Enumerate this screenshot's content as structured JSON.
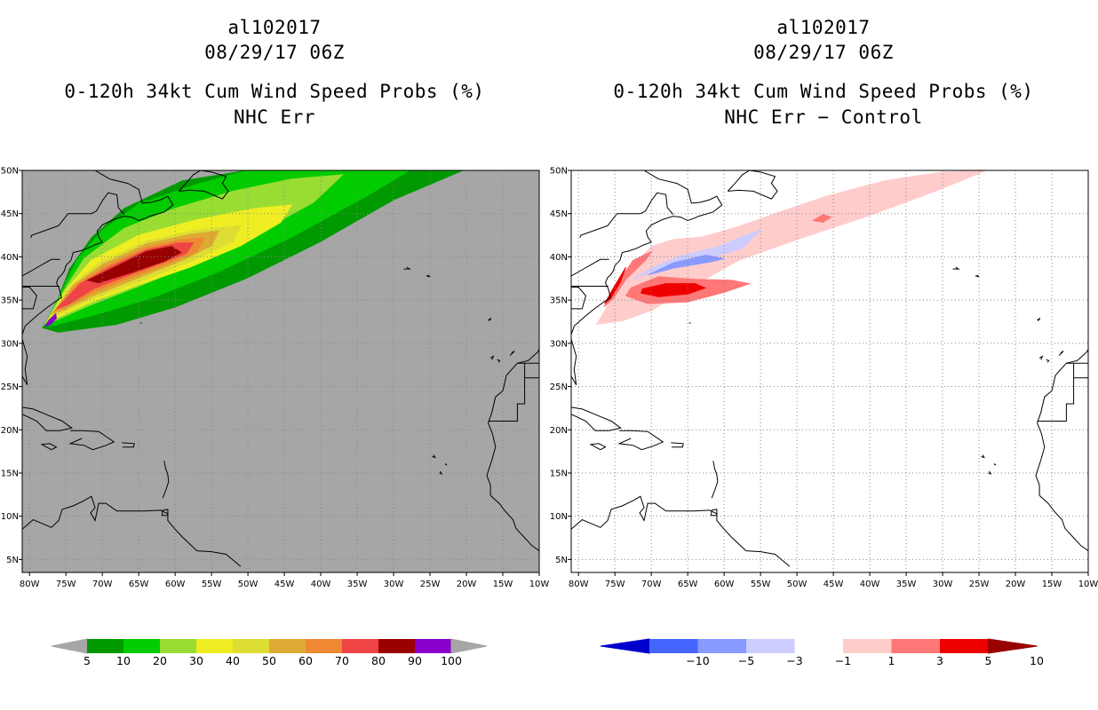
{
  "chart_data": [
    {
      "type": "heatmap",
      "storm_id": "al102017",
      "datetime": "08/29/17 06Z",
      "title": "0-120h 34kt Cum Wind Speed Probs (%)",
      "subtitle": "NHC Err",
      "xlim": [
        -81,
        -10
      ],
      "ylim": [
        3.5,
        50
      ],
      "xticks": [
        "80W",
        "75W",
        "70W",
        "65W",
        "60W",
        "55W",
        "50W",
        "45W",
        "40W",
        "35W",
        "30W",
        "25W",
        "20W",
        "15W",
        "10W"
      ],
      "yticks": [
        "5N",
        "10N",
        "15N",
        "20N",
        "25N",
        "30N",
        "35N",
        "40N",
        "45N",
        "50N"
      ],
      "background": "#a6a6a6",
      "colorbar": {
        "labels": [
          "5",
          "10",
          "20",
          "30",
          "40",
          "50",
          "60",
          "70",
          "80",
          "90",
          "100"
        ],
        "colors": [
          "#009900",
          "#00cc00",
          "#99dd33",
          "#eeee22",
          "#dddd33",
          "#ddaa33",
          "#ee8833",
          "#ee4444",
          "#990000",
          "#8800cc"
        ]
      },
      "field": [
        {
          "level": "5",
          "color": "#009900",
          "points": [
            [
              -78.2,
              31.8
            ],
            [
              -76.5,
              34.2
            ],
            [
              -74.5,
              38.6
            ],
            [
              -71.5,
              42.2
            ],
            [
              -67,
              45.6
            ],
            [
              -59,
              48.8
            ],
            [
              -50,
              50
            ],
            [
              -20.5,
              50
            ],
            [
              -30,
              46.6
            ],
            [
              -40,
              41.8
            ],
            [
              -50,
              37.6
            ],
            [
              -60,
              34.2
            ],
            [
              -68,
              32.2
            ],
            [
              -76,
              31.3
            ]
          ]
        },
        {
          "level": "10",
          "color": "#00cc00",
          "points": [
            [
              -78,
              32
            ],
            [
              -76,
              35.3
            ],
            [
              -73.5,
              39.6
            ],
            [
              -70,
              43.1
            ],
            [
              -65,
              46.1
            ],
            [
              -57,
              48.4
            ],
            [
              -50,
              50
            ],
            [
              -27.8,
              50
            ],
            [
              -34,
              46.9
            ],
            [
              -44,
              42.3
            ],
            [
              -54,
              38.3
            ],
            [
              -63,
              35.3
            ],
            [
              -71,
              33.3
            ],
            [
              -76.6,
              32.1
            ]
          ]
        },
        {
          "level": "20",
          "color": "#99dd33",
          "points": [
            [
              -77.8,
              32.3
            ],
            [
              -75.5,
              35.8
            ],
            [
              -72.5,
              39.8
            ],
            [
              -67,
              43.3
            ],
            [
              -60,
              45.6
            ],
            [
              -52,
              47.6
            ],
            [
              -44,
              49
            ],
            [
              -37,
              49.5
            ],
            [
              -41,
              46.3
            ],
            [
              -49,
              42.6
            ],
            [
              -57,
              39.3
            ],
            [
              -65,
              36.6
            ],
            [
              -72,
              34.3
            ],
            [
              -76.6,
              32.6
            ]
          ]
        },
        {
          "level": "30",
          "color": "#eeee22",
          "points": [
            [
              -77.5,
              32.6
            ],
            [
              -75,
              36.2
            ],
            [
              -71.5,
              39.6
            ],
            [
              -65,
              42.5
            ],
            [
              -57,
              44.3
            ],
            [
              -49,
              45.6
            ],
            [
              -44,
              46
            ],
            [
              -45.5,
              44
            ],
            [
              -51,
              41.3
            ],
            [
              -58,
              38.8
            ],
            [
              -65,
              36.8
            ],
            [
              -71.5,
              34.8
            ],
            [
              -76.2,
              33
            ]
          ]
        },
        {
          "level": "40",
          "color": "#dddd33",
          "points": [
            [
              -77.2,
              33
            ],
            [
              -74.5,
              36.5
            ],
            [
              -70.5,
              39.3
            ],
            [
              -64,
              41.8
            ],
            [
              -57,
              43.1
            ],
            [
              -51,
              43.6
            ],
            [
              -52,
              41.8
            ],
            [
              -57.5,
              39.6
            ],
            [
              -64,
              37.4
            ],
            [
              -71,
              35.3
            ],
            [
              -75.8,
              33.4
            ]
          ]
        },
        {
          "level": "50",
          "color": "#ddaa33",
          "points": [
            [
              -76.9,
              33.4
            ],
            [
              -74,
              36.7
            ],
            [
              -70,
              39.1
            ],
            [
              -64,
              41.5
            ],
            [
              -58,
              42.6
            ],
            [
              -54,
              43
            ],
            [
              -55,
              41.3
            ],
            [
              -59,
              39.6
            ],
            [
              -65,
              37.6
            ],
            [
              -71,
              35.6
            ],
            [
              -75.4,
              33.8
            ]
          ]
        },
        {
          "level": "60",
          "color": "#ee8833",
          "points": [
            [
              -76.6,
              33.7
            ],
            [
              -73.5,
              36.8
            ],
            [
              -69.5,
              38.9
            ],
            [
              -64,
              41.1
            ],
            [
              -59,
              42
            ],
            [
              -56,
              42.2
            ],
            [
              -57,
              40.6
            ],
            [
              -60.5,
              39.4
            ],
            [
              -65.5,
              37.8
            ],
            [
              -71,
              36
            ],
            [
              -75,
              34.2
            ]
          ]
        },
        {
          "level": "70",
          "color": "#ee4444",
          "points": [
            [
              -76.3,
              34
            ],
            [
              -73,
              36.9
            ],
            [
              -69,
              38.8
            ],
            [
              -64,
              40.8
            ],
            [
              -59.5,
              41.6
            ],
            [
              -57.5,
              41.6
            ],
            [
              -58.5,
              40.4
            ],
            [
              -61.5,
              39.4
            ],
            [
              -66,
              38
            ],
            [
              -71,
              36.4
            ],
            [
              -74.7,
              34.5
            ]
          ]
        },
        {
          "level": "80",
          "color": "#990000",
          "points": [
            [
              -72,
              37.3
            ],
            [
              -69,
              38.5
            ],
            [
              -64,
              40.6
            ],
            [
              -60.5,
              41.2
            ],
            [
              -59.2,
              40.5
            ],
            [
              -61.5,
              39.5
            ],
            [
              -66,
              38.2
            ],
            [
              -70.5,
              37
            ]
          ]
        },
        {
          "level": "90",
          "color": "#8800cc",
          "points": [
            [
              -77.8,
              32
            ],
            [
              -77.3,
              32.7
            ],
            [
              -76.4,
              33.4
            ],
            [
              -76.3,
              32.9
            ],
            [
              -77.1,
              32.2
            ]
          ]
        }
      ]
    },
    {
      "type": "heatmap",
      "storm_id": "al102017",
      "datetime": "08/29/17 06Z",
      "title": "0-120h 34kt Cum Wind Speed Probs (%)",
      "subtitle": "NHC Err − Control",
      "xlim": [
        -81,
        -10
      ],
      "ylim": [
        3.5,
        50
      ],
      "xticks": [
        "80W",
        "75W",
        "70W",
        "65W",
        "60W",
        "55W",
        "50W",
        "45W",
        "40W",
        "35W",
        "30W",
        "25W",
        "20W",
        "15W",
        "10W"
      ],
      "yticks": [
        "5N",
        "10N",
        "15N",
        "20N",
        "25N",
        "30N",
        "35N",
        "40N",
        "45N",
        "50N"
      ],
      "background": "#ffffff",
      "colorbar": {
        "labels": [
          "−10",
          "−5",
          "−3",
          "−1",
          "1",
          "3",
          "5",
          "10"
        ],
        "colors": [
          "#0000cc",
          "#4466ff",
          "#8899ff",
          "#ccccff",
          "#ffffff",
          "#ffcccc",
          "#ff7777",
          "#ee0000",
          "#990000"
        ]
      },
      "field": [
        {
          "level": "1",
          "color": "#ffcccc",
          "points": [
            [
              -77.5,
              32.2
            ],
            [
              -75,
              35.8
            ],
            [
              -72.5,
              39
            ],
            [
              -70,
              41.2
            ],
            [
              -67,
              42
            ],
            [
              -63,
              42.3
            ],
            [
              -58,
              43.5
            ],
            [
              -52,
              45.3
            ],
            [
              -46,
              47
            ],
            [
              -38,
              48.8
            ],
            [
              -30,
              49.8
            ],
            [
              -24,
              50
            ],
            [
              -31,
              47.6
            ],
            [
              -40,
              44.8
            ],
            [
              -50,
              42
            ],
            [
              -58,
              39.6
            ],
            [
              -65,
              36.3
            ],
            [
              -70,
              33.8
            ],
            [
              -74,
              32.6
            ]
          ]
        },
        {
          "level": "3",
          "color": "#ff7777",
          "points": [
            [
              -76.5,
              34.2
            ],
            [
              -75,
              36.5
            ],
            [
              -72.5,
              39.6
            ],
            [
              -70,
              40.6
            ],
            [
              -70.8,
              39.6
            ],
            [
              -73.5,
              37.4
            ],
            [
              -75.2,
              35.2
            ]
          ]
        },
        {
          "level": "3",
          "color": "#ff7777",
          "points": [
            [
              -72.8,
              36.4
            ],
            [
              -69,
              37.7
            ],
            [
              -64,
              37.4
            ],
            [
              -59,
              37.3
            ],
            [
              -56.5,
              36.9
            ],
            [
              -60,
              35.9
            ],
            [
              -65,
              34.8
            ],
            [
              -70.5,
              34.6
            ],
            [
              -73.5,
              35.5
            ]
          ]
        },
        {
          "level": "5",
          "color": "#ee0000",
          "points": [
            [
              -76.4,
              34.6
            ],
            [
              -75.2,
              36.4
            ],
            [
              -73.5,
              38.8
            ],
            [
              -74.3,
              37
            ],
            [
              -75.6,
              35.2
            ]
          ]
        },
        {
          "level": "5",
          "color": "#ee0000",
          "points": [
            [
              -71.2,
              36.3
            ],
            [
              -68,
              36.9
            ],
            [
              -64,
              36.9
            ],
            [
              -62.6,
              36.4
            ],
            [
              -65,
              35.7
            ],
            [
              -69,
              35.4
            ],
            [
              -71.4,
              35.8
            ]
          ]
        },
        {
          "level": "-1",
          "color": "#ccccff",
          "points": [
            [
              -72.5,
              37.4
            ],
            [
              -70,
              38.3
            ],
            [
              -66,
              39.2
            ],
            [
              -61,
              40.1
            ],
            [
              -57.5,
              41
            ],
            [
              -55,
              43.1
            ],
            [
              -57.7,
              42.3
            ],
            [
              -61,
              41.1
            ],
            [
              -66,
              40.1
            ],
            [
              -70,
              38.7
            ]
          ]
        },
        {
          "level": "-3",
          "color": "#8899ff",
          "points": [
            [
              -70.5,
              37.9
            ],
            [
              -67,
              38.7
            ],
            [
              -62,
              39.4
            ],
            [
              -60,
              39.8
            ],
            [
              -62.5,
              40.2
            ],
            [
              -67,
              39.3
            ]
          ]
        },
        {
          "level": "1",
          "color": "#ffcccc",
          "points": [
            [
              -51.5,
              44.4
            ],
            [
              -49,
              45.5
            ],
            [
              -46,
              45.9
            ],
            [
              -44,
              45.3
            ],
            [
              -46.5,
              44.4
            ],
            [
              -49.5,
              44.2
            ]
          ]
        },
        {
          "level": "3",
          "color": "#ff7777",
          "points": [
            [
              -47.8,
              44.2
            ],
            [
              -46.4,
              44.9
            ],
            [
              -45.3,
              44.6
            ],
            [
              -46.4,
              44
            ]
          ]
        }
      ]
    }
  ]
}
